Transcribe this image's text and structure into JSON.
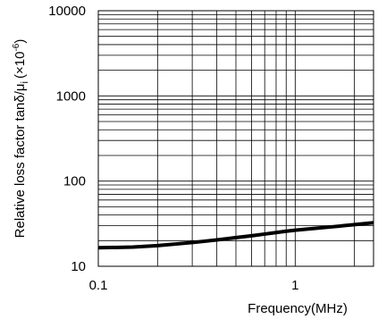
{
  "chart_data": {
    "type": "line",
    "title": "",
    "xlabel": "Frequency(MHz)",
    "ylabel": "Relative loss factor tanδ/μ",
    "ylabel_subscript": "i",
    "ylabel_unit": "(×10",
    "ylabel_unit_exponent": "-6",
    "ylabel_unit_close": ")",
    "x_scale": "log",
    "y_scale": "log",
    "xlim": [
      0.1,
      2.5
    ],
    "ylim": [
      10,
      10000
    ],
    "grid": true,
    "legend": "none",
    "x_ticks": [
      {
        "value": 0.1,
        "label": "0.1"
      },
      {
        "value": 1,
        "label": "1"
      }
    ],
    "y_ticks": [
      {
        "value": 10,
        "label": "10"
      },
      {
        "value": 100,
        "label": "100"
      },
      {
        "value": 1000,
        "label": "1000"
      },
      {
        "value": 10000,
        "label": "10000"
      }
    ],
    "series": [
      {
        "color": "#000000",
        "x": [
          0.1,
          0.15,
          0.2,
          0.3,
          0.4,
          0.5,
          0.6,
          0.7,
          0.8,
          0.9,
          1.0,
          1.2,
          1.5,
          2.0,
          2.5
        ],
        "y": [
          16.5,
          16.8,
          17.5,
          19.0,
          20.4,
          21.7,
          22.8,
          23.9,
          24.9,
          25.8,
          26.5,
          27.6,
          28.9,
          30.8,
          32.5
        ]
      }
    ]
  }
}
